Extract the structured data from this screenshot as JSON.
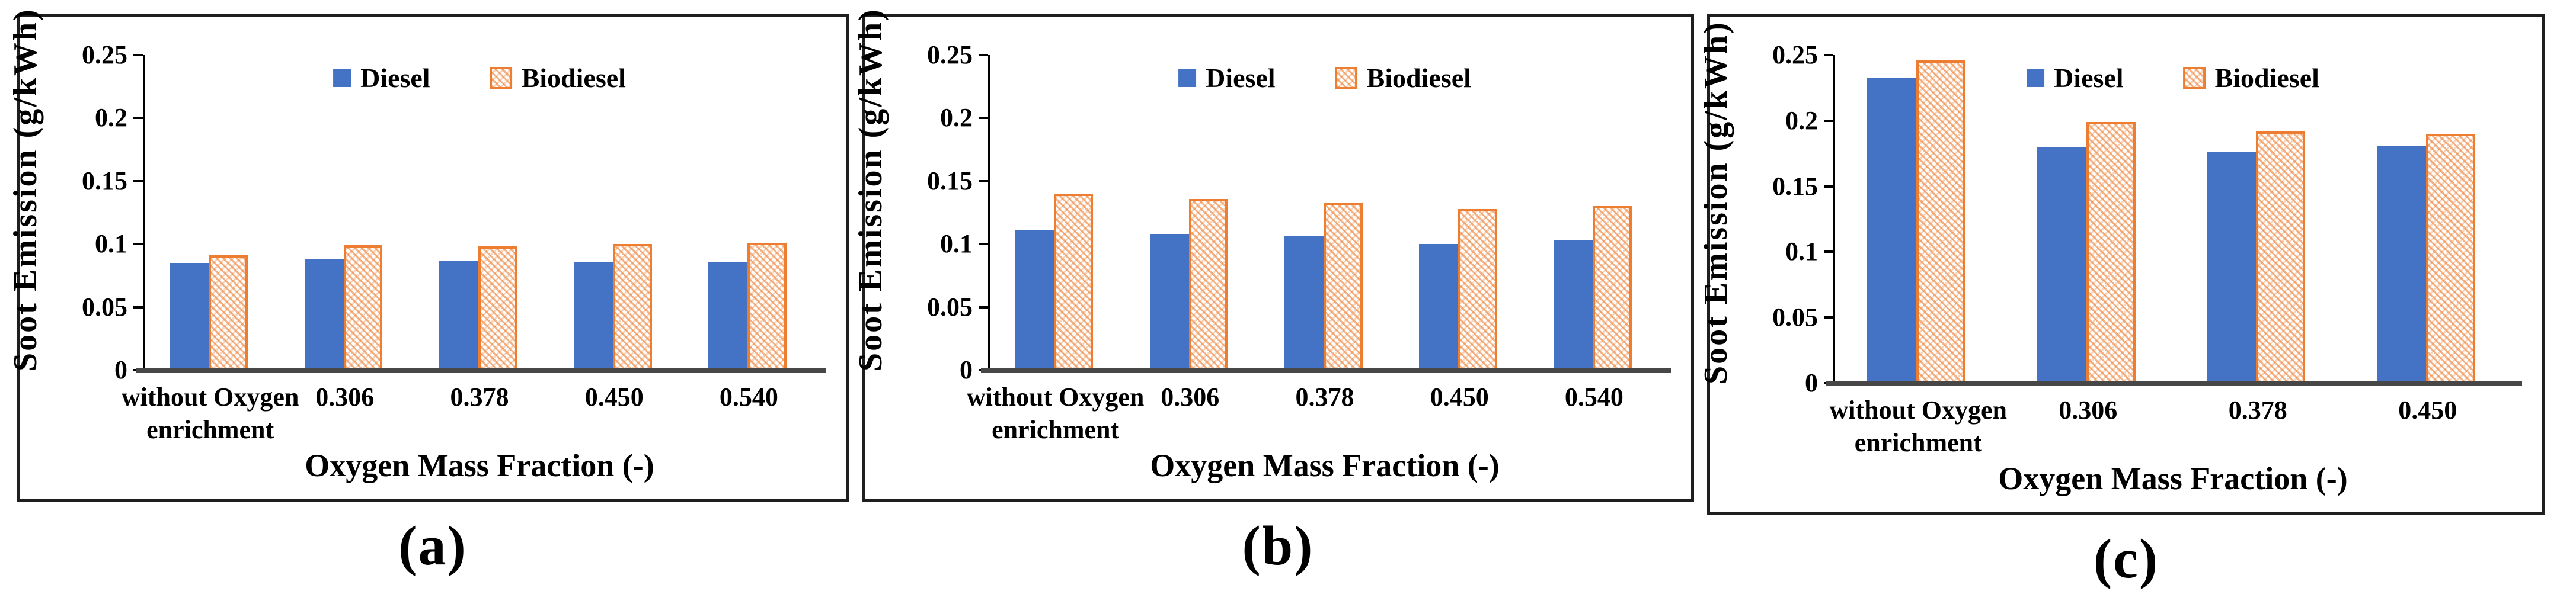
{
  "figure": {
    "background": "#ffffff",
    "panels": [
      {
        "caption": "(a)"
      },
      {
        "caption": "(b)"
      },
      {
        "caption": "(c)"
      }
    ]
  },
  "colors": {
    "diesel_blue": "#4472C4",
    "biodiesel_orange": "#ED7D31",
    "biodiesel_fill": "#FBE2CF",
    "baseline_gray": "#474747",
    "panel_border": "#1F1F1F",
    "text": "#000000"
  },
  "chart_data": [
    {
      "type": "bar",
      "panel_label": "(a)",
      "title": "",
      "ylabel": "Soot Emission (g/kWh)",
      "xlabel": "Oxygen Mass Fraction (-)",
      "ylim": [
        0,
        0.25
      ],
      "yticks": [
        0,
        0.05,
        0.1,
        0.15,
        0.2,
        0.25
      ],
      "ytick_labels": [
        "0",
        "0.05",
        "0.1",
        "0.15",
        "0.2",
        "0.25"
      ],
      "grid": false,
      "legend_position": "top-center-inside",
      "categories": [
        "without Oxygen enrichment",
        "0.306",
        "0.378",
        "0.450",
        "0.540"
      ],
      "series": [
        {
          "name": "Diesel",
          "style": "solid",
          "color": "#4472C4",
          "values": [
            0.085,
            0.088,
            0.087,
            0.086,
            0.086
          ]
        },
        {
          "name": "Biodiesel",
          "style": "hatched",
          "color": "#ED7D31",
          "values": [
            0.091,
            0.099,
            0.098,
            0.1,
            0.101
          ]
        }
      ]
    },
    {
      "type": "bar",
      "panel_label": "(b)",
      "title": "",
      "ylabel": "Soot Emission (g/kWh)",
      "xlabel": "Oxygen Mass Fraction (-)",
      "ylim": [
        0,
        0.25
      ],
      "yticks": [
        0,
        0.05,
        0.1,
        0.15,
        0.2,
        0.25
      ],
      "ytick_labels": [
        "0",
        "0.05",
        "0.1",
        "0.15",
        "0.2",
        "0.25"
      ],
      "grid": false,
      "legend_position": "top-center-inside",
      "categories": [
        "without Oxygen enrichment",
        "0.306",
        "0.378",
        "0.450",
        "0.540"
      ],
      "series": [
        {
          "name": "Diesel",
          "style": "solid",
          "color": "#4472C4",
          "values": [
            0.111,
            0.108,
            0.106,
            0.1,
            0.103
          ]
        },
        {
          "name": "Biodiesel",
          "style": "hatched",
          "color": "#ED7D31",
          "values": [
            0.14,
            0.136,
            0.133,
            0.128,
            0.13
          ]
        }
      ]
    },
    {
      "type": "bar",
      "panel_label": "(c)",
      "title": "",
      "ylabel": "Soot Emission (g/kWh)",
      "xlabel": "Oxygen Mass Fraction (-)",
      "ylim": [
        0,
        0.25
      ],
      "yticks": [
        0,
        0.05,
        0.1,
        0.15,
        0.2,
        0.25
      ],
      "ytick_labels": [
        "0",
        "0.05",
        "0.1",
        "0.15",
        "0.2",
        "0.25"
      ],
      "grid": false,
      "legend_position": "top-center-inside",
      "categories": [
        "without Oxygen enrichment",
        "0.306",
        "0.378",
        "0.450"
      ],
      "series": [
        {
          "name": "Diesel",
          "style": "solid",
          "color": "#4472C4",
          "values": [
            0.233,
            0.18,
            0.176,
            0.181
          ]
        },
        {
          "name": "Biodiesel",
          "style": "hatched",
          "color": "#ED7D31",
          "values": [
            0.246,
            0.199,
            0.192,
            0.19
          ]
        }
      ]
    }
  ]
}
